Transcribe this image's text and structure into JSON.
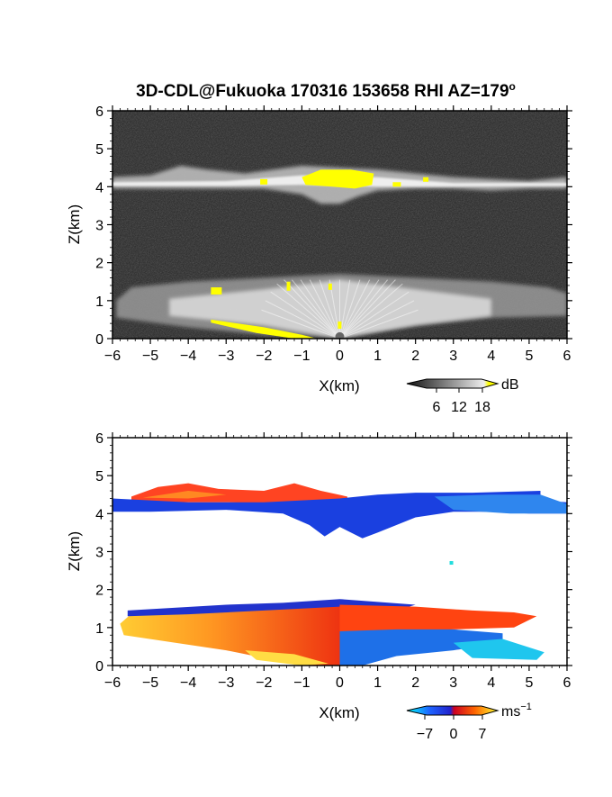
{
  "title": "3D-CDL@Fukuoka 170316 153658 RHI AZ=179",
  "title_superscript": "o",
  "chart_data": [
    {
      "type": "heatmap",
      "panel": "top",
      "field": "Backscatter intensity",
      "xlabel": "X(km)",
      "ylabel": "Z(km)",
      "xlim": [
        -6,
        6
      ],
      "ylim": [
        0,
        6
      ],
      "xticks": [
        "−6",
        "−5",
        "−4",
        "−3",
        "−2",
        "−1",
        "0",
        "1",
        "2",
        "3",
        "4",
        "5",
        "6"
      ],
      "yticks": [
        "0",
        "1",
        "2",
        "3",
        "4",
        "5",
        "6"
      ],
      "colorbar": {
        "unit": "dB",
        "ticks": [
          "6",
          "12",
          "18"
        ],
        "range": [
          0,
          21
        ]
      },
      "features": [
        {
          "layer": "upper cloud",
          "x": [
            -6,
            6
          ],
          "z_center": 4.05,
          "z_thickness": 0.45
        },
        {
          "layer": "lower layer",
          "x": [
            -6,
            6
          ],
          "z_base": 0,
          "z_top": 1.5
        }
      ]
    },
    {
      "type": "heatmap",
      "panel": "bottom",
      "field": "Doppler velocity",
      "xlabel": "X(km)",
      "ylabel": "Z(km)",
      "xlim": [
        -6,
        6
      ],
      "ylim": [
        0,
        6
      ],
      "xticks": [
        "−6",
        "−5",
        "−4",
        "−3",
        "−2",
        "−1",
        "0",
        "1",
        "2",
        "3",
        "4",
        "5",
        "6"
      ],
      "yticks": [
        "0",
        "1",
        "2",
        "3",
        "4",
        "5",
        "6"
      ],
      "colorbar": {
        "unit": "ms",
        "unit_superscript": "−1",
        "ticks": [
          "−7",
          "0",
          "7"
        ],
        "range": [
          -7,
          7
        ]
      },
      "features": [
        {
          "layer": "upper cloud top",
          "x": [
            -5.5,
            0
          ],
          "z": [
            4.3,
            4.8
          ],
          "velocity": 3
        },
        {
          "layer": "upper cloud base",
          "x": [
            -6,
            6
          ],
          "z": [
            3.4,
            4.4
          ],
          "velocity": -6
        },
        {
          "layer": "lower west",
          "x": [
            -5.7,
            0
          ],
          "z": [
            0,
            1.5
          ],
          "velocity": 5
        },
        {
          "layer": "lower east",
          "x": [
            0,
            4.5
          ],
          "z": [
            0,
            0.9
          ],
          "velocity": -4
        }
      ]
    }
  ]
}
